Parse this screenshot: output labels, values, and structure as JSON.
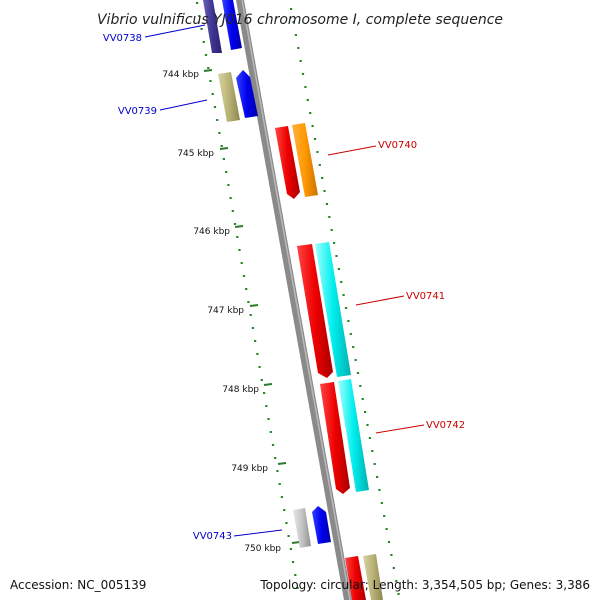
{
  "title": "Vibrio vulnificus YJ016 chromosome I, complete sequence",
  "footer": {
    "accession": "Accession: NC_005139",
    "summary": "Topology: circular; Length: 3,354,505 bp; Genes: 3,386"
  },
  "ticks": [
    "744 kbp",
    "745 kbp",
    "746 kbp",
    "747 kbp",
    "748 kbp",
    "749 kbp",
    "750 kbp"
  ],
  "genes": [
    {
      "label": "VV0738",
      "strand": "forward",
      "color": "#0000ee"
    },
    {
      "label": "VV0739",
      "strand": "forward",
      "color": "#0000ee"
    },
    {
      "label": "VV0740",
      "strand": "reverse",
      "color": "#ee0000"
    },
    {
      "label": "VV0741",
      "strand": "reverse",
      "color": "#ee0000"
    },
    {
      "label": "VV0742",
      "strand": "reverse",
      "color": "#ee0000"
    },
    {
      "label": "VV0743",
      "strand": "forward",
      "color": "#0000ee"
    }
  ],
  "colors": {
    "backbone": "#888888",
    "forward_cds": "#0000ee",
    "reverse_cds": "#ee0000",
    "forward_gene": "#b9b276",
    "reverse_gene": "#ff9900",
    "reverse_gene_alt": "#00eeee",
    "gc_dots": "#228822",
    "forward_label": "#0000cc",
    "reverse_label": "#cc0000"
  }
}
